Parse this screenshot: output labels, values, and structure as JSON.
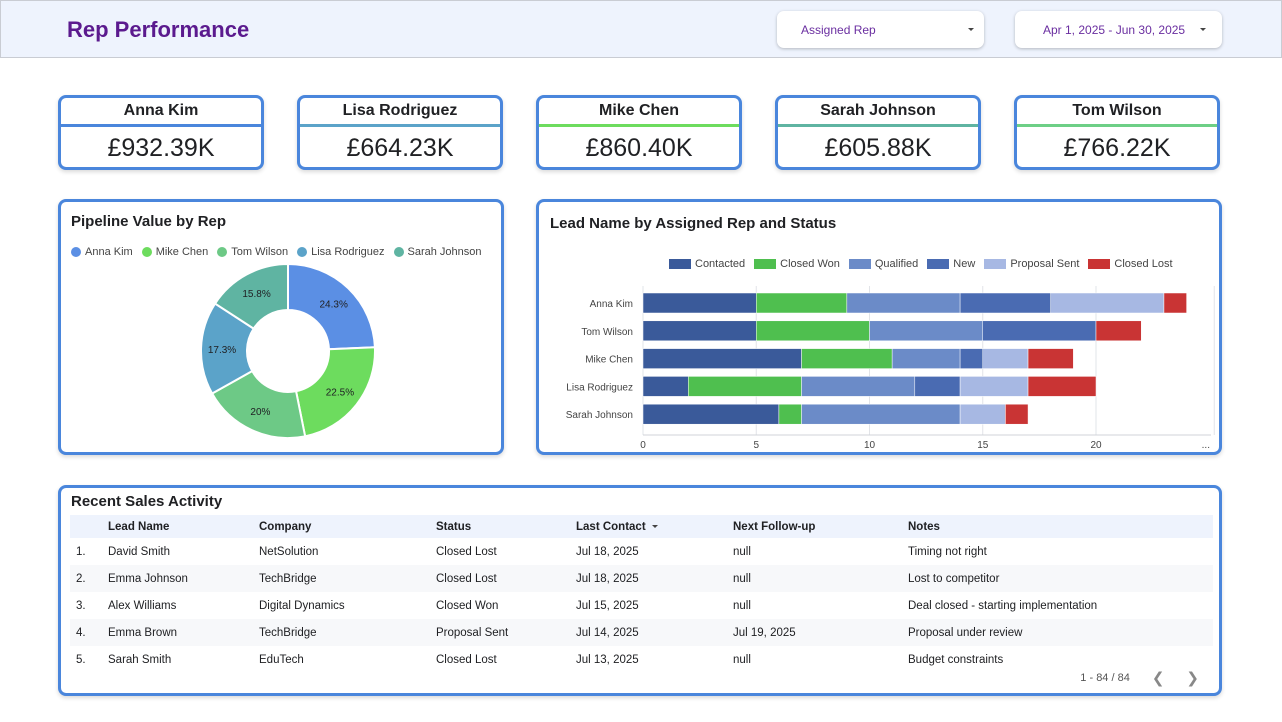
{
  "header": {
    "title": "Rep Performance",
    "rep_filter_label": "Assigned Rep",
    "date_range_label": "Apr 1, 2025 - Jun 30, 2025"
  },
  "scorecards": [
    {
      "name": "Anna Kim",
      "value": "£932.39K",
      "accent": "#4a86dc"
    },
    {
      "name": "Lisa Rodriguez",
      "value": "£664.23K",
      "accent": "#5ba3c9"
    },
    {
      "name": "Mike Chen",
      "value": "£860.40K",
      "accent": "#6ddc5e"
    },
    {
      "name": "Sarah Johnson",
      "value": "£605.88K",
      "accent": "#5fb4a2"
    },
    {
      "name": "Tom Wilson",
      "value": "£766.22K",
      "accent": "#6dcf86"
    }
  ],
  "pipeline": {
    "title": "Pipeline Value by Rep",
    "chart_data": {
      "type": "pie",
      "labels": [
        "Anna Kim",
        "Mike Chen",
        "Tom Wilson",
        "Lisa Rodriguez",
        "Sarah Johnson"
      ],
      "values": [
        24.3,
        22.5,
        20,
        17.3,
        15.8
      ],
      "value_labels": [
        "24.3%",
        "22.5%",
        "20%",
        "17.3%",
        "15.8%"
      ],
      "colors": [
        "#5b8fe4",
        "#6ddc5e",
        "#6dc986",
        "#5ba3c9",
        "#5fb4a2"
      ],
      "donut": true,
      "legend": "top"
    }
  },
  "lead_status": {
    "title": "Lead Name by Assigned Rep and Status",
    "chart_data": {
      "type": "bar",
      "orientation": "horizontal",
      "stacked": true,
      "categories": [
        "Anna Kim",
        "Tom Wilson",
        "Mike Chen",
        "Lisa Rodriguez",
        "Sarah Johnson"
      ],
      "series": [
        {
          "name": "Contacted",
          "color": "#3a5a9a",
          "values": [
            5,
            5,
            7,
            2,
            6
          ]
        },
        {
          "name": "Closed Won",
          "color": "#4fbf4f",
          "values": [
            4,
            5,
            4,
            5,
            1
          ]
        },
        {
          "name": "Qualified",
          "color": "#6b8bc8",
          "values": [
            5,
            5,
            3,
            5,
            7
          ]
        },
        {
          "name": "New",
          "color": "#4a6bb2",
          "values": [
            4,
            5,
            1,
            2,
            0
          ]
        },
        {
          "name": "Proposal Sent",
          "color": "#a7b8e3",
          "values": [
            5,
            0,
            2,
            3,
            2
          ]
        },
        {
          "name": "Closed Lost",
          "color": "#c93434",
          "values": [
            1,
            2,
            2,
            3,
            1
          ]
        }
      ],
      "x_ticks": [
        "0",
        "5",
        "10",
        "15",
        "20"
      ],
      "xlim": [
        0,
        25
      ],
      "x_overflow_label": "...",
      "grid": true,
      "legend": "top"
    }
  },
  "activity": {
    "title": "Recent Sales Activity",
    "columns": [
      "",
      "Lead Name",
      "Company",
      "Status",
      "Last Contact",
      "Next Follow-up",
      "Notes"
    ],
    "rows": [
      [
        "1.",
        "David Smith",
        "NetSolution",
        "Closed Lost",
        "Jul 18, 2025",
        "null",
        "Timing not right"
      ],
      [
        "2.",
        "Emma Johnson",
        "TechBridge",
        "Closed Lost",
        "Jul 18, 2025",
        "null",
        "Lost to competitor"
      ],
      [
        "3.",
        "Alex Williams",
        "Digital Dynamics",
        "Closed Won",
        "Jul 15, 2025",
        "null",
        "Deal closed - starting implementation"
      ],
      [
        "4.",
        "Emma Brown",
        "TechBridge",
        "Proposal Sent",
        "Jul 14, 2025",
        "Jul 19, 2025",
        "Proposal under review"
      ],
      [
        "5.",
        "Sarah Smith",
        "EduTech",
        "Closed Lost",
        "Jul 13, 2025",
        "null",
        "Budget constraints"
      ]
    ],
    "pagination": "1 - 84 / 84",
    "prev_icon": "chevron-left-icon",
    "next_icon": "chevron-right-icon"
  }
}
